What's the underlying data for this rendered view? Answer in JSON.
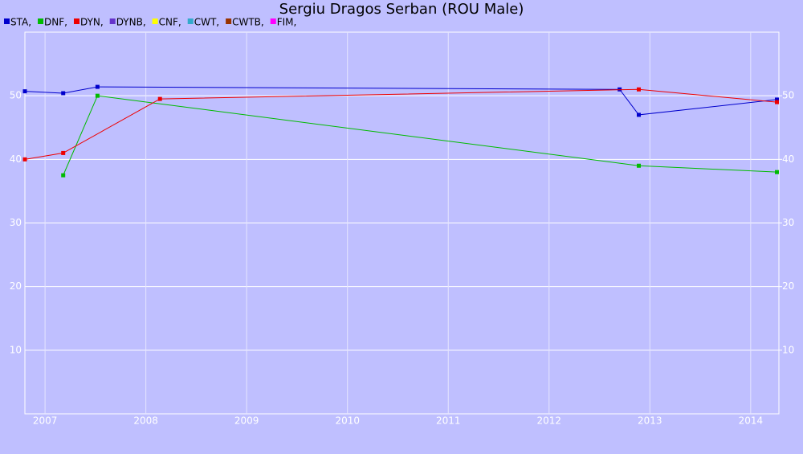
{
  "chart_data": {
    "type": "line",
    "title": "Sergiu Dragos Serban (ROU Male)",
    "xlim": [
      2006.8,
      2014.28
    ],
    "xticks": [
      2007,
      2008,
      2009,
      2010,
      2011,
      2012,
      2013,
      2014
    ],
    "ylim": [
      0,
      60
    ],
    "yticks": [
      10,
      20,
      30,
      40,
      50
    ],
    "y2lim": [
      0,
      60
    ],
    "y2ticks": [
      10,
      20,
      30,
      40,
      50
    ],
    "grid": true,
    "legend": "top-left",
    "series": [
      {
        "name": "STA,",
        "color": "#0000cc",
        "x": [
          2006.8,
          2007.18,
          2007.52,
          2012.7,
          2012.89,
          2014.26
        ],
        "values": [
          50.7,
          50.4,
          51.4,
          51.0,
          47.0,
          49.4
        ]
      },
      {
        "name": "DNF,",
        "color": "#00bb00",
        "x": [
          2007.18,
          2007.52,
          2012.89,
          2014.26
        ],
        "values": [
          37.5,
          50.0,
          39.0,
          38.0
        ]
      },
      {
        "name": "DYN,",
        "color": "#ee0000",
        "x": [
          2006.8,
          2007.18,
          2008.14,
          2012.89,
          2014.26
        ],
        "values": [
          40.0,
          41.0,
          49.5,
          51.0,
          49.0
        ]
      },
      {
        "name": "DYNB,",
        "color": "#6633cc",
        "x": [],
        "values": []
      },
      {
        "name": "CNF,",
        "color": "#ffff00",
        "x": [],
        "values": []
      },
      {
        "name": "CWT,",
        "color": "#33aacc",
        "x": [],
        "values": []
      },
      {
        "name": "CWTB,",
        "color": "#993300",
        "x": [],
        "values": []
      },
      {
        "name": "FIM,",
        "color": "#ff00ff",
        "x": [],
        "values": []
      }
    ]
  }
}
